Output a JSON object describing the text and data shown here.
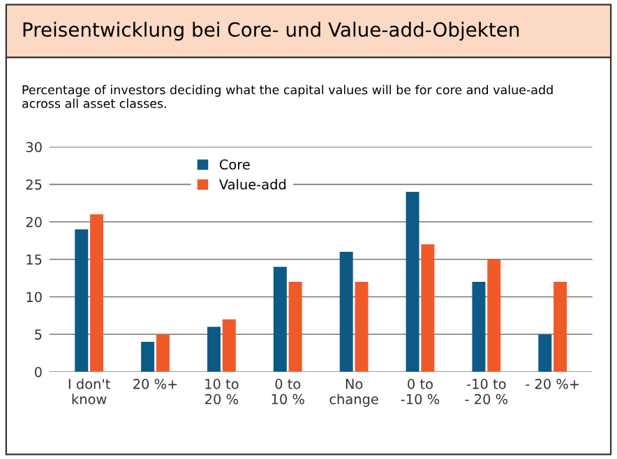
{
  "chart_data": {
    "type": "bar",
    "title": "Preisentwicklung bei Core- und Value-add-Objekten",
    "subtitle": "Percentage of investors deciding what the capital values will be for core and value-add across all asset classes.",
    "categories": [
      "I don't\nknow",
      "20 %+",
      "10 to\n20 %",
      "0 to\n10 %",
      "No\nchange",
      "0 to\n-10 %",
      "-10 to\n- 20 %",
      "- 20 %+"
    ],
    "series": [
      {
        "name": "Core",
        "color": "#0d5a86",
        "values": [
          19,
          4,
          6,
          14,
          16,
          24,
          12,
          5
        ]
      },
      {
        "name": "Value-add",
        "color": "#f05a28",
        "values": [
          21,
          5,
          7,
          12,
          12,
          17,
          15,
          12
        ]
      }
    ],
    "ylim": [
      0,
      30
    ],
    "yticks": [
      0,
      5,
      10,
      15,
      20,
      25,
      30
    ],
    "grid": "y",
    "legend": "top left"
  }
}
